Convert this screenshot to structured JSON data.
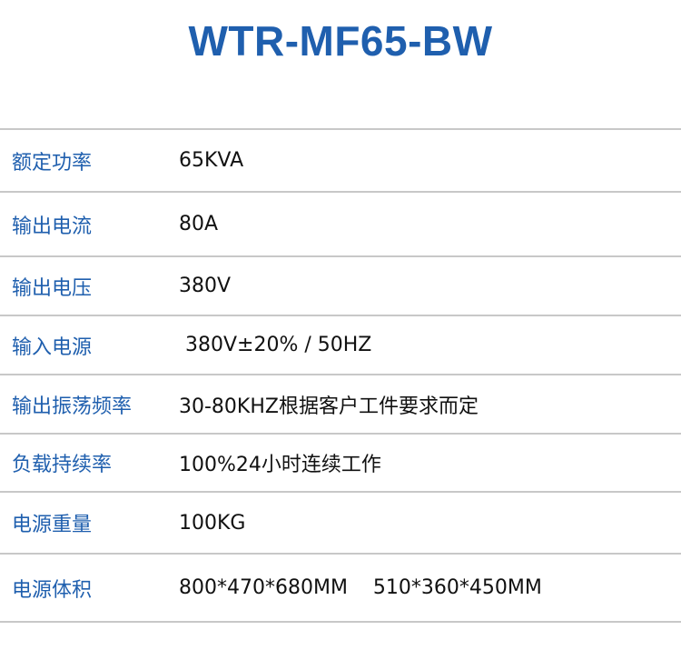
{
  "title": "WTR-MF65-BW",
  "specs": [
    {
      "label": "额定功率",
      "value": "65KVA"
    },
    {
      "label": "输出电流",
      "value": "80A"
    },
    {
      "label": "输出电压",
      "value": "380V"
    },
    {
      "label": "输入电源",
      "value": " 380V±20% / 50HZ"
    },
    {
      "label": "输出振荡频率",
      "value": "30-80KHZ根据客户工件要求而定"
    },
    {
      "label": "负载持续率",
      "value": "100%24小时连续工作"
    },
    {
      "label": "电源重量",
      "value": "100KG"
    },
    {
      "label": "电源体积",
      "value": "800*470*680MM    510*360*450MM"
    }
  ],
  "colors": {
    "accent": "#1f5fae",
    "divider": "#c8c8c8"
  }
}
